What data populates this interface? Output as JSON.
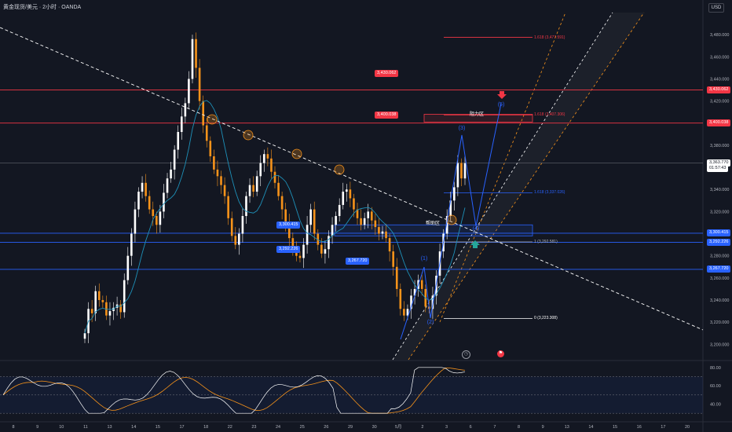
{
  "header": {
    "title": "黄金现货/美元 · 2小时 · OANDA",
    "currency": "USD"
  },
  "price_axis": {
    "ticks": [
      "3,480.000",
      "3,460.000",
      "3,440.000",
      "3,420.000",
      "3,380.000",
      "3,340.000",
      "3,320.000",
      "3,280.000",
      "3,260.000",
      "3,240.000",
      "3,220.000",
      "3,200.000"
    ],
    "tick_values": [
      3480,
      3460,
      3440,
      3420,
      3380,
      3340,
      3320,
      3280,
      3260,
      3240,
      3220,
      3200
    ],
    "badges": [
      {
        "text": "3,430.062",
        "value": 3430.062,
        "color": "#f23645"
      },
      {
        "text": "3,400.038",
        "value": 3400.038,
        "color": "#f23645"
      },
      {
        "text": "3,363.770",
        "value": 3363.77,
        "color": "#ffffff"
      },
      {
        "text": "01:57:43",
        "value": 3359.2,
        "color": "#ffffff"
      },
      {
        "text": "3,300.415",
        "value": 3300.415,
        "color": "#2962ff"
      },
      {
        "text": "3,292.226",
        "value": 3292.226,
        "color": "#2962ff"
      },
      {
        "text": "3,267.720",
        "value": 3267.72,
        "color": "#2962ff"
      }
    ],
    "range": [
      3186,
      3500
    ]
  },
  "rsi_axis": {
    "ticks": [
      "80.00",
      "60.00",
      "40.00"
    ],
    "tick_values": [
      80,
      60,
      40
    ],
    "range": [
      25,
      85
    ]
  },
  "time_axis": {
    "labels": [
      "8",
      "9",
      "10",
      "11",
      "13",
      "14",
      "15",
      "17",
      "18",
      "22",
      "23",
      "24",
      "25",
      "26",
      "29",
      "30",
      "5月",
      "2",
      "3",
      "6",
      "7",
      "8",
      "9",
      "13",
      "14",
      "15",
      "16",
      "17",
      "20"
    ]
  },
  "levels": {
    "resistance": [
      {
        "value": 3430.062,
        "label": "3,430.062"
      },
      {
        "value": 3400.038,
        "label": "3,400.038"
      }
    ],
    "support": [
      {
        "value": 3300.415,
        "label": "3,300.415"
      },
      {
        "value": 3292.226,
        "label": "3,292.226"
      },
      {
        "value": 3267.72,
        "label": "3,267.720"
      }
    ],
    "last_price": 3363.77
  },
  "zones": {
    "resistance_zone": {
      "label": "阻力区",
      "top": 3408,
      "bottom": 3401,
      "color": "#f23645"
    },
    "support_zone": {
      "label": "帮助区",
      "top": 3308,
      "bottom": 3298,
      "color": "#2962ff"
    }
  },
  "fibonacci": [
    {
      "text": "1.618 (3,477.591)",
      "value": 3477.591
    },
    {
      "text": "1.618 (3,407.306)",
      "value": 3407.306
    },
    {
      "text": "1.618 (3,337.026)",
      "value": 3337.026
    },
    {
      "text": "1 (3,292.581)",
      "value": 3292.581
    },
    {
      "text": "0 (3,223.308)",
      "value": 3223.308
    }
  ],
  "waves": [
    "(1)",
    "(2)",
    "(3)",
    "(4)",
    "(5)"
  ],
  "colors": {
    "background": "#131722",
    "grid": "#1e222d",
    "up": "#ffffff",
    "down": "#f7931a",
    "ma": "#1e90b8",
    "resistance": "#f23645",
    "support": "#2962ff",
    "rsi": "#ffffff",
    "rsi_ma": "#f7931a",
    "channel": "#f7931a"
  },
  "icons": {
    "alert_icon": "clock-icon",
    "flag_icon": "flag-icon"
  },
  "chart_data": {
    "type": "candlestick",
    "series": [
      {
        "name": "",
        "close": [
          3210,
          3232,
          3228,
          3248,
          3240,
          3238,
          3226,
          3230,
          3233,
          3236,
          3229,
          3258,
          3280,
          3300,
          3322,
          3338,
          3346,
          3334,
          3322,
          3316,
          3308,
          3320,
          3337,
          3350,
          3358,
          3376,
          3392,
          3406,
          3418,
          3440,
          3476,
          3450,
          3420,
          3398,
          3384,
          3370,
          3358,
          3352,
          3344,
          3334,
          3314,
          3298,
          3290,
          3300,
          3316,
          3334,
          3344,
          3338,
          3352,
          3364,
          3372,
          3368,
          3356,
          3346,
          3334,
          3322,
          3310,
          3296,
          3286,
          3280,
          3278,
          3290,
          3308,
          3322,
          3300,
          3290,
          3282,
          3286,
          3298,
          3308,
          3316,
          3326,
          3338,
          3340,
          3332,
          3322,
          3314,
          3308,
          3314,
          3320,
          3312,
          3306,
          3300,
          3302,
          3296,
          3284,
          3270,
          3250,
          3232,
          3226,
          3232,
          3244,
          3250,
          3258,
          3250,
          3234,
          3232,
          3244,
          3262,
          3284,
          3300,
          3316,
          3330,
          3342,
          3364,
          3350,
          3363.77
        ]
      }
    ],
    "xlabel": "",
    "ylabel": "",
    "grid": false
  }
}
